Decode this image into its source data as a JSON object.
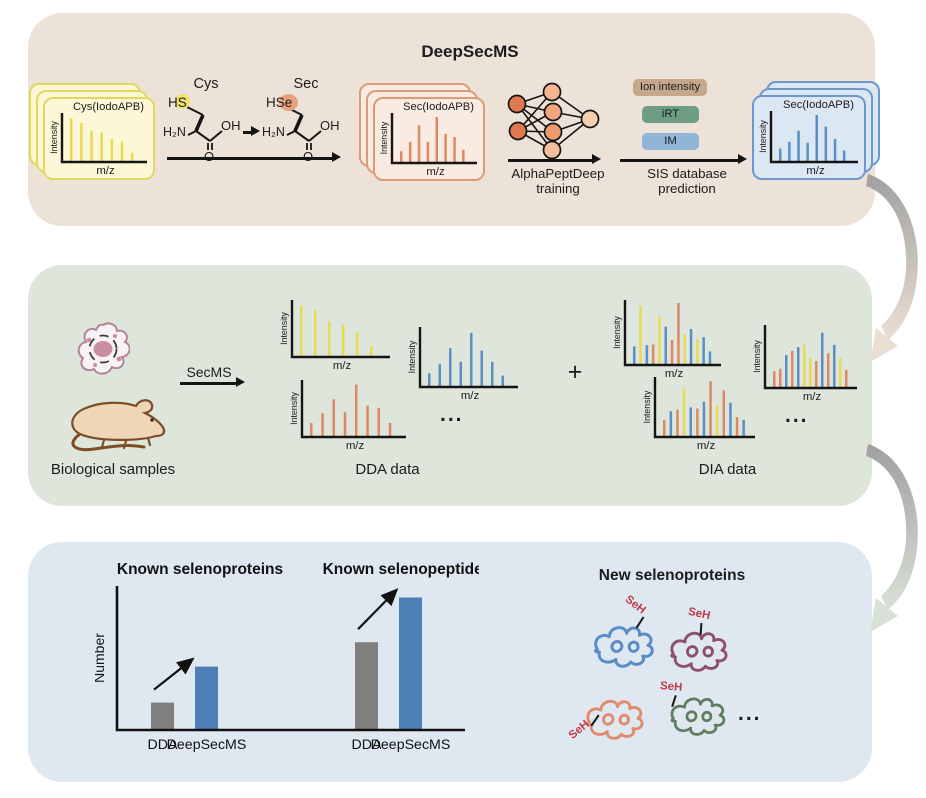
{
  "colors": {
    "panel_top": "#ece2d8",
    "panel_middle": "#dee5db",
    "panel_bottom": "#dfe8f1",
    "spectrum_yellow": "#e8da55",
    "spectrum_orange": "#dd8a64",
    "spectrum_blue": "#5c8ec6",
    "card_yellow_border": "#e3d75e",
    "card_orange_border": "#db9b77",
    "card_blue_border": "#6c98ce",
    "badge_ion": "#c5a88b",
    "badge_irt": "#6e9d85",
    "badge_im": "#90b5d6",
    "bar_gray": "#7f7f7f",
    "bar_blue": "#4d7fb5",
    "protein_blue": "#5a8cc8",
    "protein_purple": "#8d4f6f",
    "protein_orange": "#e08a6e",
    "protein_green": "#5f7e5e",
    "seh_red": "#c23a45",
    "highlight_s": "#f2e268",
    "highlight_se": "#e9a27e"
  },
  "top": {
    "title": "DeepSecMS",
    "cards": {
      "cys": {
        "title": "Cys(IodoAPB)",
        "ylabel": "Intensity",
        "xlabel": "m/z",
        "bars": [
          [
            0.95,
            "y"
          ],
          [
            0.85,
            "y"
          ],
          [
            0.68,
            "y"
          ],
          [
            0.64,
            "y"
          ],
          [
            0.5,
            "y"
          ],
          [
            0.44,
            "y"
          ],
          [
            0.2,
            "y"
          ]
        ]
      },
      "sec": {
        "title": "Sec(IodoAPB)",
        "ylabel": "Intensity",
        "xlabel": "m/z",
        "bars": [
          [
            0.25,
            "o"
          ],
          [
            0.45,
            "o"
          ],
          [
            0.8,
            "o"
          ],
          [
            0.45,
            "o"
          ],
          [
            0.98,
            "o"
          ],
          [
            0.62,
            "o"
          ],
          [
            0.55,
            "o"
          ],
          [
            0.28,
            "o"
          ]
        ]
      },
      "sec_pred": {
        "title": "Sec(IodoAPB)",
        "ylabel": "Intensity",
        "xlabel": "m/z",
        "bars": [
          [
            0.28,
            "b"
          ],
          [
            0.42,
            "b"
          ],
          [
            0.65,
            "b"
          ],
          [
            0.4,
            "b"
          ],
          [
            0.98,
            "b"
          ],
          [
            0.74,
            "b"
          ],
          [
            0.48,
            "b"
          ],
          [
            0.24,
            "b"
          ]
        ]
      }
    },
    "chemistry": {
      "left_name": "Cys",
      "right_name": "Sec",
      "h": "H",
      "s": "S",
      "se": "Se",
      "amine": "H₂N",
      "hydroxyl": "OH",
      "carbonyl": "O"
    },
    "nn_label": {
      "line1": "AlphaPeptDeep",
      "line2": "training"
    },
    "sis_label": {
      "line1": "SIS database",
      "line2": "prediction"
    },
    "badges": {
      "ion": "Ion intensity",
      "irt": "iRT",
      "im": "IM"
    }
  },
  "middle": {
    "samples_label": "Biological samples",
    "secms_label": "SecMS",
    "plus": "+",
    "ellipsis": "...",
    "dda_label": "DDA data",
    "dia_label": "DIA data",
    "dda_spectra": [
      {
        "ylabel": "Intensity",
        "xlabel": "m/z",
        "bars": [
          [
            0.95,
            "y"
          ],
          [
            0.88,
            "y"
          ],
          [
            0.66,
            "y"
          ],
          [
            0.6,
            "y"
          ],
          [
            0.46,
            "y"
          ],
          [
            0.2,
            "y"
          ]
        ]
      },
      {
        "ylabel": "Intensity",
        "xlabel": "m/z",
        "bars": [
          [
            0.24,
            "b"
          ],
          [
            0.4,
            "b"
          ],
          [
            0.68,
            "b"
          ],
          [
            0.44,
            "b"
          ],
          [
            0.95,
            "b"
          ],
          [
            0.64,
            "b"
          ],
          [
            0.44,
            "b"
          ],
          [
            0.2,
            "b"
          ]
        ]
      },
      {
        "ylabel": "Intensity",
        "xlabel": "m/z",
        "bars": [
          [
            0.26,
            "o"
          ],
          [
            0.44,
            "o"
          ],
          [
            0.7,
            "o"
          ],
          [
            0.46,
            "o"
          ],
          [
            0.97,
            "o"
          ],
          [
            0.58,
            "o"
          ],
          [
            0.54,
            "o"
          ],
          [
            0.26,
            "o"
          ]
        ]
      }
    ],
    "dia_spectra": [
      {
        "ylabel": "Intensity",
        "xlabel": "m/z",
        "bars": [
          [
            0.3,
            "b"
          ],
          [
            0.95,
            "y"
          ],
          [
            0.32,
            "b"
          ],
          [
            0.33,
            "o"
          ],
          [
            0.78,
            "y"
          ],
          [
            0.62,
            "b"
          ],
          [
            0.4,
            "o"
          ],
          [
            1.0,
            "o"
          ],
          [
            0.5,
            "y"
          ],
          [
            0.58,
            "b"
          ],
          [
            0.42,
            "y"
          ],
          [
            0.45,
            "b"
          ],
          [
            0.22,
            "b"
          ]
        ]
      },
      {
        "ylabel": "Intensity",
        "xlabel": "m/z",
        "bars": [
          [
            0.28,
            "o"
          ],
          [
            0.32,
            "o"
          ],
          [
            0.55,
            "b"
          ],
          [
            0.62,
            "o"
          ],
          [
            0.68,
            "b"
          ],
          [
            0.72,
            "y"
          ],
          [
            0.5,
            "y"
          ],
          [
            0.45,
            "o"
          ],
          [
            0.92,
            "b"
          ],
          [
            0.58,
            "o"
          ],
          [
            0.72,
            "b"
          ],
          [
            0.5,
            "y"
          ],
          [
            0.3,
            "o"
          ]
        ]
      },
      {
        "ylabel": "Intensity",
        "xlabel": "m/z",
        "bars": [
          [
            0.3,
            "o"
          ],
          [
            0.45,
            "b"
          ],
          [
            0.48,
            "o"
          ],
          [
            0.85,
            "y"
          ],
          [
            0.52,
            "b"
          ],
          [
            0.5,
            "o"
          ],
          [
            0.62,
            "b"
          ],
          [
            0.98,
            "o"
          ],
          [
            0.55,
            "y"
          ],
          [
            0.82,
            "o"
          ],
          [
            0.6,
            "b"
          ],
          [
            0.35,
            "o"
          ],
          [
            0.3,
            "b"
          ]
        ]
      }
    ]
  },
  "bottom": {
    "chart": {
      "type": "bar",
      "ylabel": "Number",
      "bar_colors": [
        "#7f7f7f",
        "#4d7fb5"
      ],
      "groups": [
        {
          "title": "Known selenoproteins",
          "categories": [
            "DDA",
            "DeepSecMS"
          ],
          "values_relative": [
            0.19,
            0.44
          ]
        },
        {
          "title": "Known selenopeptides",
          "categories": [
            "DDA",
            "DeepSecMS"
          ],
          "values_relative": [
            0.61,
            0.92
          ]
        }
      ]
    },
    "new_title": "New selenoproteins",
    "seh": "SeH",
    "ellipsis": "..."
  }
}
